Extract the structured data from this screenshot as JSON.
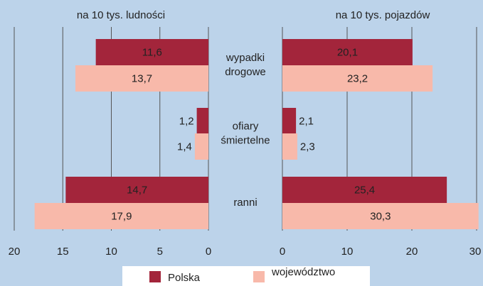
{
  "chart_data": [
    {
      "type": "hbar",
      "axis_title": "na 10 tys. ludności",
      "categories": [
        [
          "wypadki",
          "drogowe"
        ],
        [
          "ofiary",
          "śmiertelne"
        ],
        [
          "ranni"
        ]
      ],
      "xlim": [
        20,
        0
      ],
      "xticks": [
        20,
        15,
        10,
        5,
        0
      ],
      "grid": true,
      "series": [
        {
          "name": "Polska",
          "color": "#a3253b",
          "values": [
            11.6,
            1.2,
            14.7
          ],
          "value_labels": [
            "11,6",
            "1,2",
            "14,7"
          ]
        },
        {
          "name": "województwo",
          "color": "#f8b9aa",
          "values": [
            13.7,
            1.4,
            17.9
          ],
          "value_labels": [
            "13,7",
            "1,4",
            "17,9"
          ]
        }
      ]
    },
    {
      "type": "hbar",
      "axis_title": "na 10 tys. pojazdów",
      "xlim": [
        0,
        30
      ],
      "xticks": [
        0,
        10,
        20,
        30
      ],
      "grid": true,
      "series": [
        {
          "color": "#a3253b",
          "values": [
            20.1,
            2.1,
            25.4
          ],
          "value_labels": [
            "20,1",
            "2,1",
            "25,4"
          ]
        },
        {
          "color": "#f8b9aa",
          "values": [
            23.2,
            2.3,
            30.3
          ],
          "value_labels": [
            "23,2",
            "2,3",
            "30,3"
          ]
        }
      ]
    }
  ]
}
